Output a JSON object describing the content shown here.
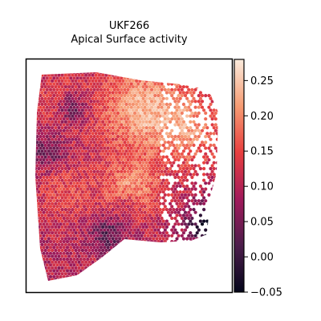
{
  "chart_data": {
    "type": "heatmap",
    "title_line1": "UKF266",
    "title_line2": "Apical Surface activity",
    "xlabel": "",
    "ylabel": "",
    "colorbar": {
      "vmin": -0.05,
      "vmax": 0.28,
      "ticks": [
        {
          "value": 0.25,
          "label": "0.25"
        },
        {
          "value": 0.2,
          "label": "0.20"
        },
        {
          "value": 0.15,
          "label": "0.15"
        },
        {
          "value": 0.1,
          "label": "0.10"
        },
        {
          "value": 0.05,
          "label": "0.05"
        },
        {
          "value": 0.0,
          "label": "0.00"
        },
        {
          "value": -0.05,
          "label": "−0.05"
        }
      ],
      "colormap": "rocket",
      "stops": [
        "#03051a",
        "#4c1d4b",
        "#a11a5b",
        "#e83f3f",
        "#f69c73",
        "#faebdd"
      ]
    },
    "spatial_summary": [
      {
        "region": "upper-right lobe",
        "approx_value": 0.22
      },
      {
        "region": "upper-left band",
        "approx_value": 0.14
      },
      {
        "region": "central patch",
        "approx_value": 0.2
      },
      {
        "region": "lower-left",
        "approx_value": 0.12
      },
      {
        "region": "lower-right edge",
        "approx_value": 0.02
      }
    ]
  }
}
